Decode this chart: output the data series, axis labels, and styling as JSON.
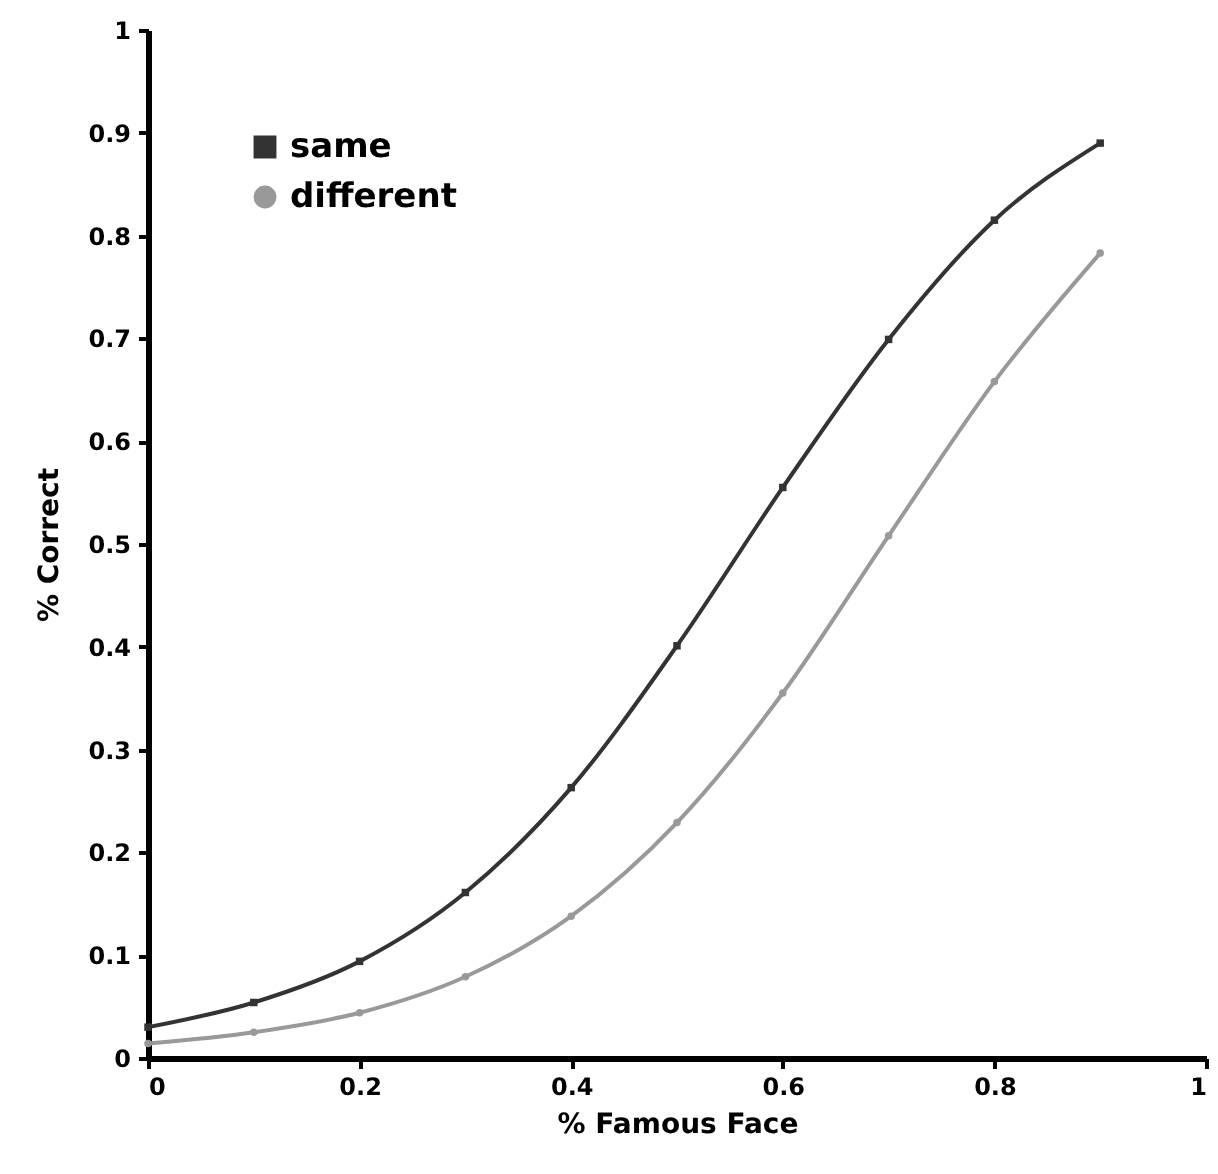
{
  "chart_data": {
    "type": "line",
    "xlabel": "% Famous Face",
    "ylabel": "% Correct",
    "x": [
      0,
      0.1,
      0.2,
      0.3,
      0.4,
      0.5,
      0.6,
      0.7,
      0.8,
      0.9
    ],
    "series": [
      {
        "name": "same",
        "color": "#333333",
        "marker": "square",
        "values": [
          0.03,
          0.054,
          0.094,
          0.161,
          0.263,
          0.401,
          0.555,
          0.699,
          0.815,
          0.89
        ]
      },
      {
        "name": "different",
        "color": "#999999",
        "marker": "circle",
        "values": [
          0.014,
          0.025,
          0.044,
          0.079,
          0.138,
          0.229,
          0.355,
          0.508,
          0.658,
          0.783
        ]
      }
    ],
    "xlim": [
      0,
      1
    ],
    "xticks": [
      0,
      0.2,
      0.4,
      0.6,
      0.8,
      1
    ],
    "ylim": [
      0,
      1
    ],
    "yticks": [
      0,
      0.1,
      0.2,
      0.3,
      0.4,
      0.5,
      0.6,
      0.7,
      0.8,
      0.9,
      1
    ],
    "grid": false,
    "legend": "top left",
    "line_style": "solid"
  }
}
